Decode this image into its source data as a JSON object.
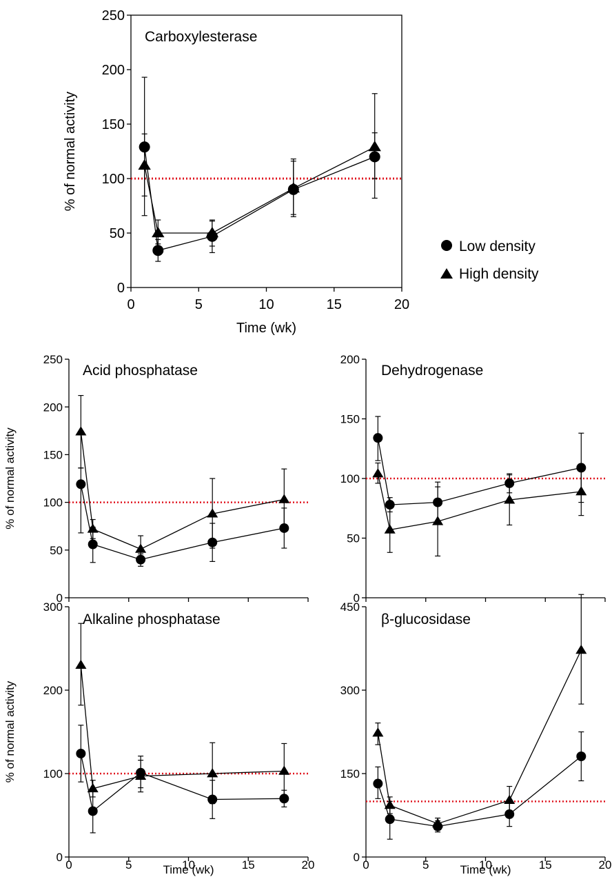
{
  "legend": [
    {
      "label": "Low density",
      "marker": "circle"
    },
    {
      "label": "High density",
      "marker": "triangle"
    }
  ],
  "reference_line_color": "#e0141e",
  "chart_data": [
    {
      "type": "line",
      "title": "Carboxylesterase",
      "xlabel": "Time (wk)",
      "ylabel": "% of normal activity",
      "xlim": [
        0,
        20
      ],
      "ylim": [
        0,
        250
      ],
      "xticks": [
        0,
        5,
        10,
        15,
        20
      ],
      "yticks": [
        0,
        50,
        100,
        150,
        200,
        250
      ],
      "reference_line": 100,
      "series": [
        {
          "name": "Low density",
          "marker": "circle",
          "x": [
            1,
            2,
            6,
            12,
            18
          ],
          "y": [
            129,
            34,
            47,
            90,
            120
          ],
          "err_low": [
            84,
            24,
            32,
            65,
            82
          ],
          "err_high": [
            193,
            44,
            62,
            118,
            178
          ]
        },
        {
          "name": "High density",
          "marker": "triangle",
          "x": [
            1,
            2,
            6,
            12,
            18
          ],
          "y": [
            112,
            50,
            50,
            91,
            129
          ],
          "err_low": [
            66,
            40,
            38,
            67,
            100
          ],
          "err_high": [
            141,
            62,
            61,
            116,
            142
          ]
        }
      ]
    },
    {
      "type": "line",
      "title": "Acid phosphatase",
      "xlabel": "",
      "ylabel": "% of normal activity",
      "xlim": [
        0,
        20
      ],
      "ylim": [
        0,
        250
      ],
      "xticks": [
        0,
        5,
        10,
        15,
        20
      ],
      "yticks": [
        0,
        50,
        100,
        150,
        200,
        250
      ],
      "reference_line": 100,
      "series": [
        {
          "name": "Low density",
          "marker": "circle",
          "x": [
            1,
            2,
            6,
            12,
            18
          ],
          "y": [
            119,
            56,
            40,
            58,
            73
          ],
          "err_low": [
            68,
            37,
            33,
            38,
            52
          ],
          "err_high": [
            136,
            74,
            46,
            78,
            94
          ]
        },
        {
          "name": "High density",
          "marker": "triangle",
          "x": [
            1,
            2,
            6,
            12,
            18
          ],
          "y": [
            174,
            72,
            51,
            88,
            103
          ],
          "err_low": [
            136,
            62,
            37,
            52,
            72
          ],
          "err_high": [
            212,
            82,
            65,
            125,
            135
          ]
        }
      ]
    },
    {
      "type": "line",
      "title": "Dehydrogenase",
      "xlabel": "",
      "ylabel": "",
      "xlim": [
        0,
        20
      ],
      "ylim": [
        0,
        200
      ],
      "xticks": [
        0,
        5,
        10,
        15,
        20
      ],
      "yticks": [
        0,
        50,
        100,
        150,
        200
      ],
      "reference_line": 100,
      "series": [
        {
          "name": "Low density",
          "marker": "circle",
          "x": [
            1,
            2,
            6,
            12,
            18
          ],
          "y": [
            134,
            78,
            80,
            96,
            109
          ],
          "err_low": [
            115,
            72,
            62,
            88,
            80
          ],
          "err_high": [
            152,
            84,
            97,
            104,
            138
          ]
        },
        {
          "name": "High density",
          "marker": "triangle",
          "x": [
            1,
            2,
            6,
            12,
            18
          ],
          "y": [
            104,
            57,
            64,
            82,
            89
          ],
          "err_low": [
            96,
            38,
            35,
            61,
            69
          ],
          "err_high": [
            113,
            76,
            93,
            103,
            109
          ]
        }
      ]
    },
    {
      "type": "line",
      "title": "Alkaline phosphatase",
      "xlabel": "Time (wk)",
      "ylabel": "% of normal activity",
      "xlim": [
        0,
        20
      ],
      "ylim": [
        0,
        300
      ],
      "xticks": [
        0,
        5,
        10,
        15,
        20
      ],
      "yticks": [
        0,
        100,
        200,
        300
      ],
      "reference_line": 100,
      "series": [
        {
          "name": "Low density",
          "marker": "circle",
          "x": [
            1,
            2,
            6,
            12,
            18
          ],
          "y": [
            124,
            55,
            101,
            69,
            70
          ],
          "err_low": [
            90,
            29,
            83,
            46,
            60
          ],
          "err_high": [
            158,
            81,
            121,
            92,
            80
          ]
        },
        {
          "name": "High density",
          "marker": "triangle",
          "x": [
            1,
            2,
            6,
            12,
            18
          ],
          "y": [
            230,
            82,
            97,
            100,
            103
          ],
          "err_low": [
            182,
            72,
            78,
            64,
            70
          ],
          "err_high": [
            280,
            92,
            116,
            137,
            136
          ]
        }
      ]
    },
    {
      "type": "line",
      "title": "β-glucosidase",
      "xlabel": "Time (wk)",
      "ylabel": "",
      "xlim": [
        0,
        20
      ],
      "ylim": [
        0,
        450
      ],
      "xticks": [
        0,
        5,
        10,
        15,
        20
      ],
      "yticks": [
        0,
        150,
        300,
        450
      ],
      "reference_line": 100,
      "series": [
        {
          "name": "Low density",
          "marker": "circle",
          "x": [
            1,
            2,
            6,
            12,
            18
          ],
          "y": [
            132,
            68,
            55,
            77,
            181
          ],
          "err_low": [
            105,
            32,
            45,
            55,
            137
          ],
          "err_high": [
            162,
            100,
            65,
            100,
            225
          ]
        },
        {
          "name": "High density",
          "marker": "triangle",
          "x": [
            1,
            2,
            6,
            12,
            18
          ],
          "y": [
            223,
            93,
            60,
            102,
            372
          ],
          "err_low": [
            202,
            78,
            50,
            80,
            275
          ],
          "err_high": [
            241,
            108,
            70,
            127,
            472
          ]
        }
      ]
    }
  ]
}
